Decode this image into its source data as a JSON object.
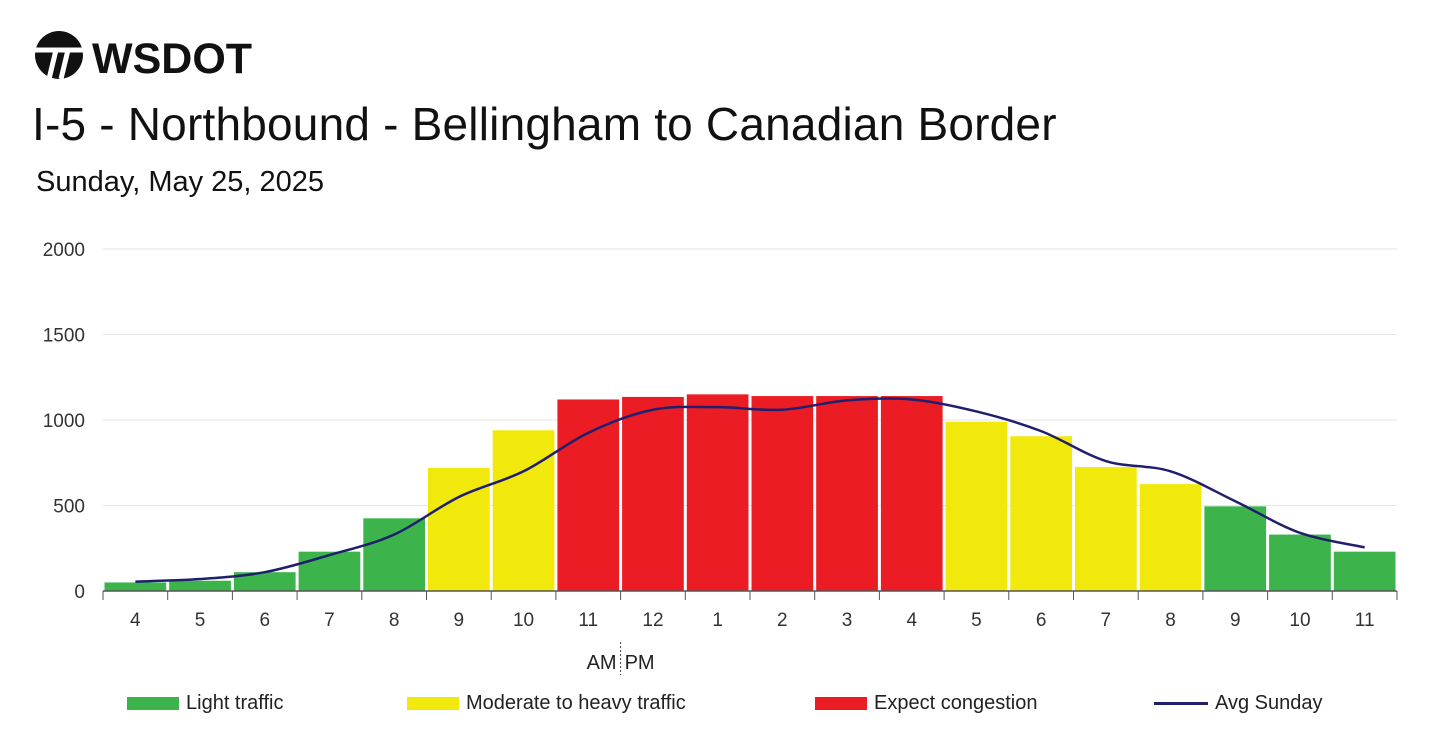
{
  "header": {
    "logo_text": "WSDOT",
    "title": "I-5 - Northbound - Bellingham to Canadian Border",
    "subtitle": "Sunday, May 25, 2025"
  },
  "colors": {
    "light": "#3cb44b",
    "moderate": "#f2e90c",
    "congestion": "#ec1c24",
    "avg_line": "#1f1f6e",
    "grid": "#e6e6e6"
  },
  "legend": {
    "light": "Light traffic",
    "moderate": "Moderate to heavy traffic",
    "congestion": "Expect congestion",
    "avg": "Avg Sunday"
  },
  "chart_data": {
    "type": "bar",
    "categories": [
      "4",
      "5",
      "6",
      "7",
      "8",
      "9",
      "10",
      "11",
      "12",
      "1",
      "2",
      "3",
      "4",
      "5",
      "6",
      "7",
      "8",
      "9",
      "10",
      "11"
    ],
    "am_label": "AM",
    "pm_label": "PM",
    "ylim": [
      0,
      2000
    ],
    "yticks": [
      "0",
      "500",
      "1000",
      "1500",
      "2000"
    ],
    "grid": true,
    "legend_position": "bottom",
    "series": [
      {
        "name": "",
        "values": [
          50,
          60,
          110,
          230,
          425,
          720,
          940,
          1120,
          1135,
          1150,
          1140,
          1140,
          1140,
          990,
          905,
          725,
          625,
          495,
          330,
          230
        ],
        "levels": [
          "light",
          "light",
          "light",
          "light",
          "light",
          "moderate",
          "moderate",
          "congestion",
          "congestion",
          "congestion",
          "congestion",
          "congestion",
          "congestion",
          "moderate",
          "moderate",
          "moderate",
          "moderate",
          "light",
          "light",
          "light"
        ]
      },
      {
        "name": "Avg Sunday",
        "type": "line",
        "values": [
          55,
          70,
          110,
          210,
          330,
          550,
          700,
          925,
          1060,
          1075,
          1060,
          1115,
          1120,
          1050,
          935,
          760,
          700,
          525,
          340,
          255
        ]
      }
    ]
  }
}
